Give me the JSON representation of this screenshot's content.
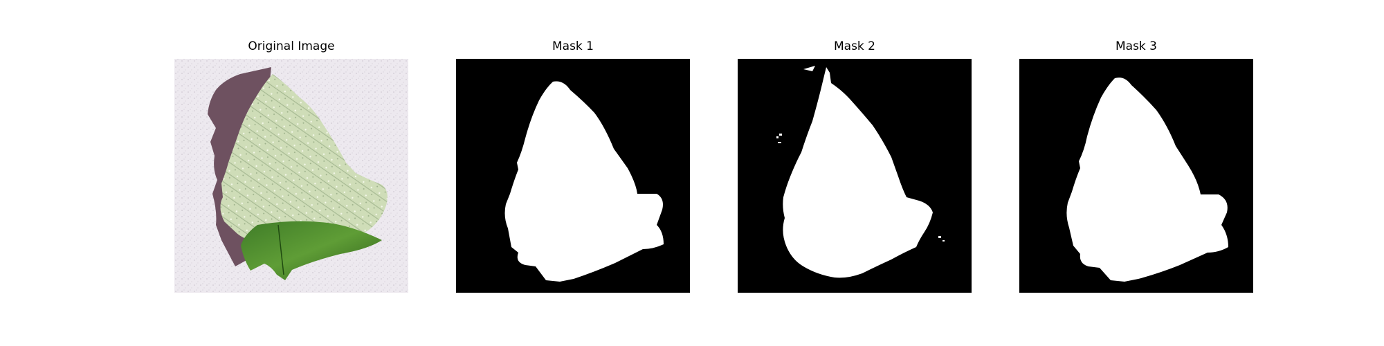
{
  "figure": {
    "panels": [
      {
        "title": "Original Image",
        "kind": "photo"
      },
      {
        "title": "Mask 1",
        "kind": "mask"
      },
      {
        "title": "Mask 2",
        "kind": "mask"
      },
      {
        "title": "Mask 3",
        "kind": "mask"
      }
    ],
    "colors": {
      "background": "#ffffff",
      "mask_background": "#000000",
      "mask_foreground": "#ffffff",
      "leaf_light": "#dde8c8",
      "leaf_dark": "#2f6a1a",
      "shadow": "#6b4f5c",
      "surface": "#ece8ee"
    }
  }
}
